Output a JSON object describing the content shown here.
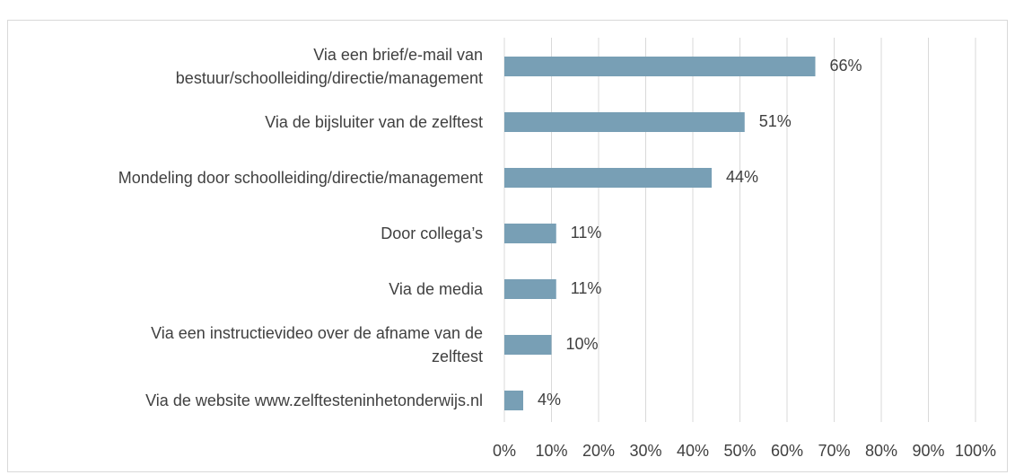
{
  "chart_data": {
    "type": "bar",
    "orientation": "horizontal",
    "categories": [
      "Via een brief/e-mail van\nbestuur/schoolleiding/directie/management",
      "Via de bijsluiter van de zelftest",
      "Mondeling door schoolleiding/directie/management",
      "Door collega’s",
      "Via de media",
      "Via een instructievideo over de afname van de\nzelftest",
      "Via de website www.zelftesteninhetonderwijs.nl"
    ],
    "values": [
      66,
      51,
      44,
      11,
      11,
      10,
      4
    ],
    "value_labels": [
      "66%",
      "51%",
      "44%",
      "11%",
      "11%",
      "10%",
      "4%"
    ],
    "color": "#789fb5",
    "xlim": [
      0,
      100
    ],
    "xticks": [
      {
        "value": 0,
        "label": "0%"
      },
      {
        "value": 10,
        "label": "10%"
      },
      {
        "value": 20,
        "label": "20%"
      },
      {
        "value": 30,
        "label": "30%"
      },
      {
        "value": 40,
        "label": "40%"
      },
      {
        "value": 50,
        "label": "50%"
      },
      {
        "value": 60,
        "label": "60%"
      },
      {
        "value": 70,
        "label": "70%"
      },
      {
        "value": 80,
        "label": "80%"
      },
      {
        "value": 90,
        "label": "90%"
      },
      {
        "value": 100,
        "label": "100%"
      }
    ],
    "grid": true
  }
}
